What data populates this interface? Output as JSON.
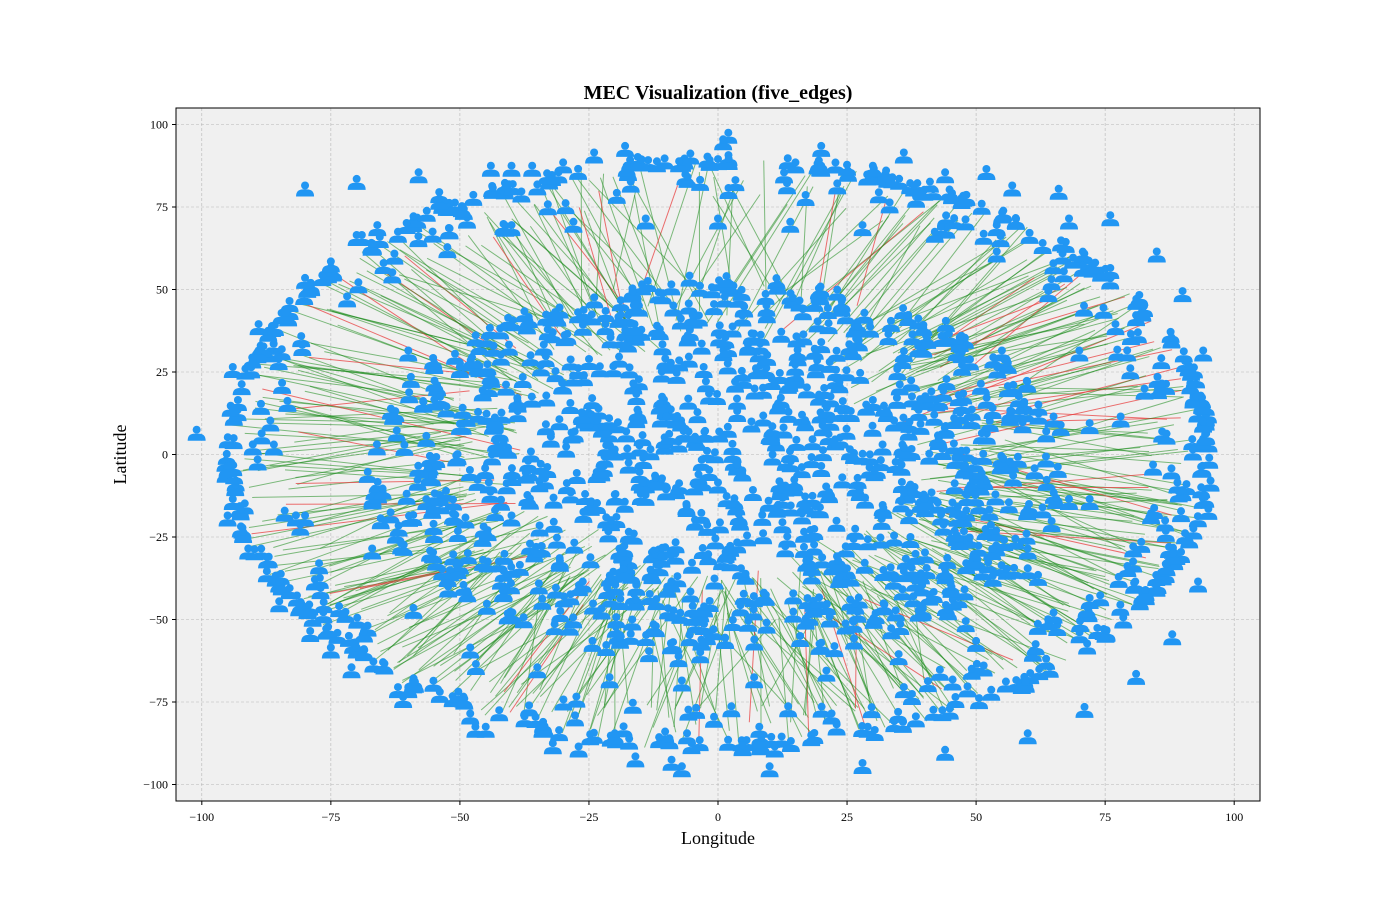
{
  "chart_data": {
    "type": "scatter",
    "title": "MEC Visualization (five_edges)",
    "xlabel": "Longitude",
    "ylabel": "Latitude",
    "xlim": [
      -105,
      105
    ],
    "ylim": [
      -105,
      105
    ],
    "xticks": [
      -100,
      -75,
      -50,
      -25,
      0,
      25,
      50,
      75,
      100
    ],
    "yticks": [
      -100,
      -75,
      -50,
      -25,
      0,
      25,
      50,
      75,
      100
    ],
    "xtick_labels": [
      "−100",
      "−75",
      "−50",
      "−25",
      "0",
      "25",
      "50",
      "75",
      "100"
    ],
    "ytick_labels": [
      "−100",
      "−75",
      "−50",
      "−25",
      "0",
      "25",
      "50",
      "75",
      "100"
    ],
    "grid": true,
    "background": "#f0f0f0",
    "colors": {
      "user_marker": "#2196f3",
      "link_ok": "#1a8a1a",
      "link_overload": "#e84040",
      "grid": "#b5b5b5"
    },
    "series": [
      {
        "type": "scatter",
        "marker": "user-icon",
        "color": "#2196f3",
        "x": [
          -101,
          -95,
          -93,
          -91,
          -89,
          -85,
          -83,
          -79,
          -75,
          -71,
          -66,
          -61,
          -54,
          -47,
          -40,
          -32,
          -24,
          -16,
          -7,
          2,
          10,
          20,
          28,
          36,
          44,
          52,
          60,
          66,
          71,
          76,
          81,
          85,
          88,
          90,
          93,
          94,
          95,
          94,
          92,
          89,
          86,
          82,
          77,
          72,
          67,
          61,
          54,
          46,
          38,
          29,
          20,
          11,
          1,
          -9,
          -18,
          -27,
          -36,
          -45,
          -54,
          -62,
          -69,
          -75,
          -80,
          -85,
          -89,
          -92,
          -94,
          -95,
          -94,
          -80,
          -70,
          -58,
          -44,
          -30,
          -15,
          0,
          15,
          30,
          44,
          57,
          68,
          76,
          80,
          78,
          72,
          62,
          50,
          36,
          22,
          8,
          -6,
          -20,
          -34,
          -48,
          -60,
          -70,
          -77,
          -80,
          -70,
          -62,
          -52,
          -40,
          -28,
          -14,
          0,
          14,
          28,
          42,
          54,
          64,
          70,
          72,
          68,
          60,
          48,
          35,
          21,
          7,
          -7,
          -21,
          -35,
          -48,
          -59,
          -67,
          -20,
          -10,
          0,
          10,
          20,
          30,
          40,
          -30,
          -40,
          -50,
          -55,
          -60,
          55,
          60,
          65
        ],
        "y": [
          6,
          -20,
          15,
          -30,
          30,
          -40,
          45,
          -55,
          57,
          -66,
          68,
          -75,
          78,
          -84,
          86,
          -89,
          90,
          -93,
          -96,
          96,
          -96,
          92,
          -95,
          90,
          -91,
          85,
          -86,
          79,
          -78,
          71,
          -68,
          60,
          -56,
          48,
          -40,
          30,
          -18,
          14,
          0,
          -10,
          20,
          -28,
          38,
          -45,
          54,
          -61,
          68,
          -75,
          80,
          -84,
          86,
          -90,
          94,
          -94,
          92,
          -90,
          86,
          -84,
          76,
          -72,
          65,
          -60,
          52,
          -46,
          38,
          -25,
          25,
          -5,
          -15,
          80,
          82,
          84,
          86,
          87,
          88,
          88,
          87,
          86,
          84,
          80,
          70,
          55,
          35,
          10,
          -15,
          -38,
          -58,
          -72,
          -80,
          -84,
          -86,
          -86,
          -84,
          -80,
          -72,
          -60,
          -42,
          -20,
          65,
          66,
          67,
          68,
          69,
          70,
          70,
          69,
          68,
          66,
          60,
          48,
          30,
          8,
          -15,
          -36,
          -52,
          -62,
          -67,
          -69,
          -70,
          -69,
          -66,
          -60,
          -48,
          -30,
          0,
          10,
          -10,
          5,
          -5,
          15,
          -15,
          20,
          -20,
          25,
          -25,
          30,
          30,
          -30,
          10
        ]
      }
    ],
    "cloud": {
      "center": [
        0,
        -5
      ],
      "rx": 68,
      "ry": 58,
      "count": 900
    },
    "ring": {
      "center": [
        0,
        0
      ],
      "rx_inner": 72,
      "ry_inner": 65,
      "rx_outer": 96,
      "ry_outer": 90,
      "count": 420
    },
    "edge_links": {
      "count": 520
    }
  }
}
